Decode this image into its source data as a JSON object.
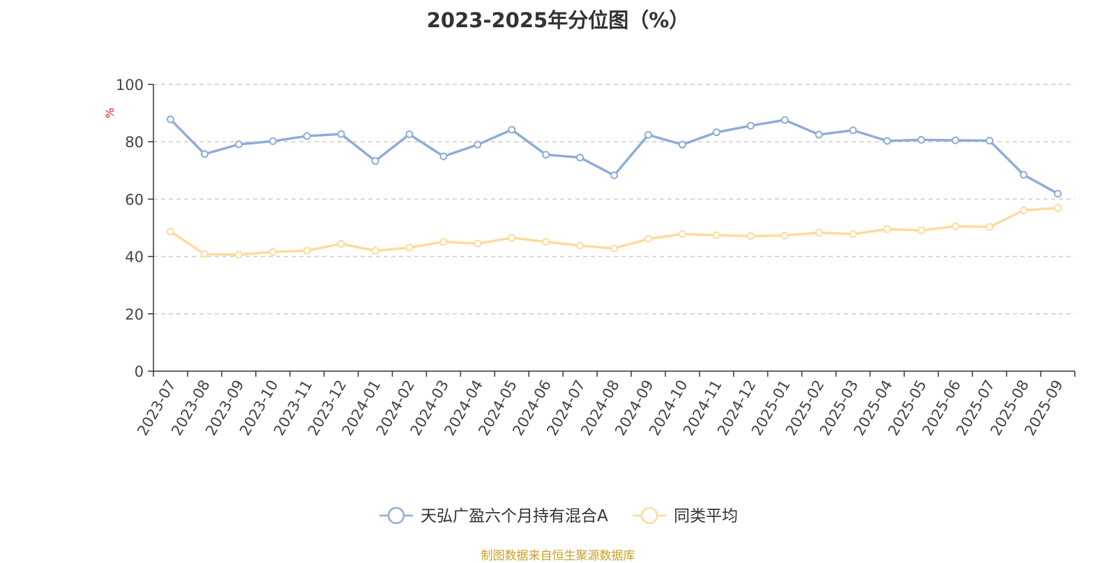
{
  "chart_data": {
    "type": "line",
    "title": "2023-2025年分位图（%）",
    "ylabel": "%",
    "xlabel": "",
    "ylim": [
      0,
      100
    ],
    "yticks": [
      0,
      20,
      40,
      60,
      80,
      100
    ],
    "grid": true,
    "legend_position": "bottom",
    "categories": [
      "2023-07",
      "2023-08",
      "2023-09",
      "2023-10",
      "2023-11",
      "2023-12",
      "2024-01",
      "2024-02",
      "2024-03",
      "2024-04",
      "2024-05",
      "2024-06",
      "2024-07",
      "2024-08",
      "2024-09",
      "2024-10",
      "2024-11",
      "2024-12",
      "2025-01",
      "2025-02",
      "2025-03",
      "2025-04",
      "2025-05",
      "2025-06",
      "2025-07",
      "2025-08",
      "2025-09"
    ],
    "series": [
      {
        "name": "天弘广盈六个月持有混合A",
        "color": "#8eacd8",
        "values": [
          87.8,
          75.7,
          79.1,
          80.2,
          82.0,
          82.7,
          73.3,
          82.6,
          74.9,
          79.0,
          84.2,
          75.5,
          74.5,
          68.3,
          82.4,
          79.0,
          83.3,
          85.6,
          87.6,
          82.5,
          84.0,
          80.3,
          80.7,
          80.5,
          80.4,
          68.5,
          61.9
        ]
      },
      {
        "name": "同类平均",
        "color": "#fddb9c",
        "values": [
          48.7,
          40.8,
          40.6,
          41.6,
          42.0,
          44.4,
          42.0,
          43.1,
          45.1,
          44.5,
          46.5,
          45.1,
          43.8,
          42.8,
          46.1,
          47.8,
          47.4,
          47.1,
          47.3,
          48.3,
          47.8,
          49.5,
          49.1,
          50.5,
          50.3,
          56.1,
          56.9
        ]
      }
    ]
  },
  "source_text": "制图数据来自恒生聚源数据库",
  "colors": {
    "axis": "#333333",
    "grid": "#cccccc",
    "ylabel": "#e02020",
    "source": "#c9a227"
  }
}
